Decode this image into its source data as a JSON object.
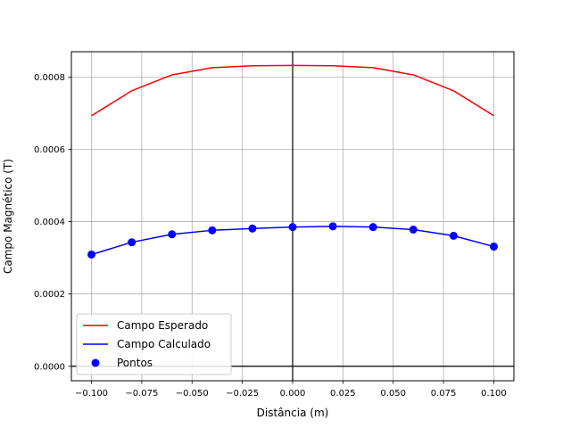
{
  "chart_data": {
    "type": "line",
    "xlabel": "Distância (m)",
    "ylabel": "Campo Magnético (T)",
    "xlim": [
      -0.11,
      0.11
    ],
    "ylim": [
      -4e-05,
      0.00087
    ],
    "grid": true,
    "legend_position": "bottom-left",
    "x_ticks": [
      -0.1,
      -0.075,
      -0.05,
      -0.025,
      0.0,
      0.025,
      0.05,
      0.075,
      0.1
    ],
    "x_tick_labels": [
      "−0.100",
      "−0.075",
      "−0.050",
      "−0.025",
      "0.000",
      "0.025",
      "0.050",
      "0.075",
      "0.100"
    ],
    "y_ticks": [
      0.0,
      0.0002,
      0.0004,
      0.0006,
      0.0008
    ],
    "y_tick_labels": [
      "0.0000",
      "0.0002",
      "0.0004",
      "0.0006",
      "0.0008"
    ],
    "series": [
      {
        "name": "Campo Esperado",
        "kind": "line",
        "color": "#ff0000",
        "x": [
          -0.1,
          -0.08,
          -0.06,
          -0.04,
          -0.02,
          0.0,
          0.02,
          0.04,
          0.06,
          0.08,
          0.1
        ],
        "y": [
          0.000693,
          0.000762,
          0.000806,
          0.000826,
          0.000831,
          0.000832,
          0.000831,
          0.000826,
          0.000806,
          0.000762,
          0.000693
        ]
      },
      {
        "name": "Campo Calculado",
        "kind": "line",
        "color": "#0000ff",
        "x": [
          -0.1,
          -0.08,
          -0.06,
          -0.04,
          -0.02,
          0.0,
          0.02,
          0.04,
          0.06,
          0.08,
          0.1
        ],
        "y": [
          0.000309,
          0.000343,
          0.000365,
          0.000376,
          0.000381,
          0.000385,
          0.000387,
          0.000385,
          0.000378,
          0.000361,
          0.000331
        ]
      },
      {
        "name": "Pontos",
        "kind": "scatter",
        "color": "#0000ff",
        "x": [
          -0.1,
          -0.08,
          -0.06,
          -0.04,
          -0.02,
          0.0,
          0.02,
          0.04,
          0.06,
          0.08,
          0.1
        ],
        "y": [
          0.000309,
          0.000343,
          0.000365,
          0.000376,
          0.000381,
          0.000385,
          0.000387,
          0.000385,
          0.000378,
          0.000361,
          0.000331
        ]
      }
    ]
  }
}
